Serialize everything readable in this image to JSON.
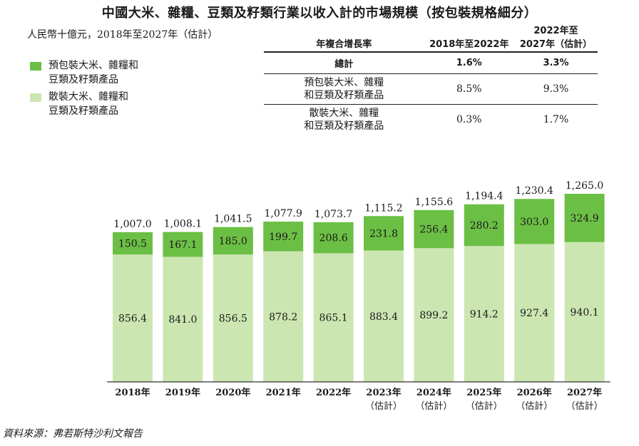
{
  "title": "中國大米、雜糧、豆類及籽類行業以收入計的市場規模（按包裝規格細分）",
  "unit_label": "人民幣十億元，2018年至2027年（估計）",
  "source": "資料來源：弗若斯特沙利文報告",
  "colors": {
    "packaged": "#6cbf45",
    "bulk": "#cce6b2"
  },
  "legend": [
    {
      "line1": "預包裝大米、雜糧和",
      "line2": "豆類及籽類產品",
      "color": "#6cbf45"
    },
    {
      "line1": "散裝大米、雜糧和",
      "line2": "豆類及籽類產品",
      "color": "#cce6b2"
    }
  ],
  "cagr_table": {
    "header": {
      "label": "年複合增長率",
      "col1": "2018年至2022年",
      "col2_line1": "2022年至",
      "col2_line2": "2027年（估計）"
    },
    "rows": [
      {
        "label1": "總計",
        "label2": "",
        "v1": "1.6%",
        "v2": "3.3%"
      },
      {
        "label1": "預包裝大米、雜糧",
        "label2": "和豆類及籽類產品",
        "v1": "8.5%",
        "v2": "9.3%"
      },
      {
        "label1": "散裝大米、雜糧",
        "label2": "和豆類及籽類產品",
        "v1": "0.3%",
        "v2": "1.7%"
      }
    ]
  },
  "chart_data": {
    "type": "bar",
    "stacked": true,
    "title": "中國大米、雜糧、豆類及籽類行業以收入計的市場規模（按包裝規格細分）",
    "ylabel": "人民幣十億元",
    "categories": [
      "2018年",
      "2019年",
      "2020年",
      "2021年",
      "2022年",
      "2023年",
      "2024年",
      "2025年",
      "2026年",
      "2027年"
    ],
    "category_sub": [
      "",
      "",
      "",
      "",
      "",
      "（估計）",
      "（估計）",
      "（估計）",
      "（估計）",
      "（估計）"
    ],
    "series": [
      {
        "name": "散裝大米、雜糧和豆類及籽類產品",
        "values": [
          856.4,
          841.0,
          856.5,
          878.2,
          865.1,
          883.4,
          899.2,
          914.2,
          927.4,
          940.1
        ],
        "labels": [
          "856.4",
          "841.0",
          "856.5",
          "878.2",
          "865.1",
          "883.4",
          "899.2",
          "914.2",
          "927.4",
          "940.1"
        ]
      },
      {
        "name": "預包裝大米、雜糧和豆類及籽類產品",
        "values": [
          150.5,
          167.1,
          185.0,
          199.7,
          208.6,
          231.8,
          256.4,
          280.2,
          303.0,
          324.9
        ],
        "labels": [
          "150.5",
          "167.1",
          "185.0",
          "199.7",
          "208.6",
          "231.8",
          "256.4",
          "280.2",
          "303.0",
          "324.9"
        ]
      }
    ],
    "totals": [
      1007.0,
      1008.1,
      1041.5,
      1077.9,
      1073.7,
      1115.2,
      1155.6,
      1194.4,
      1230.4,
      1265.0
    ],
    "total_labels": [
      "1,007.0",
      "1,008.1",
      "1,041.5",
      "1,077.9",
      "1,073.7",
      "1,115.2",
      "1,155.6",
      "1,194.4",
      "1,230.4",
      "1,265.0"
    ],
    "ylim": [
      0,
      1265.0
    ]
  }
}
